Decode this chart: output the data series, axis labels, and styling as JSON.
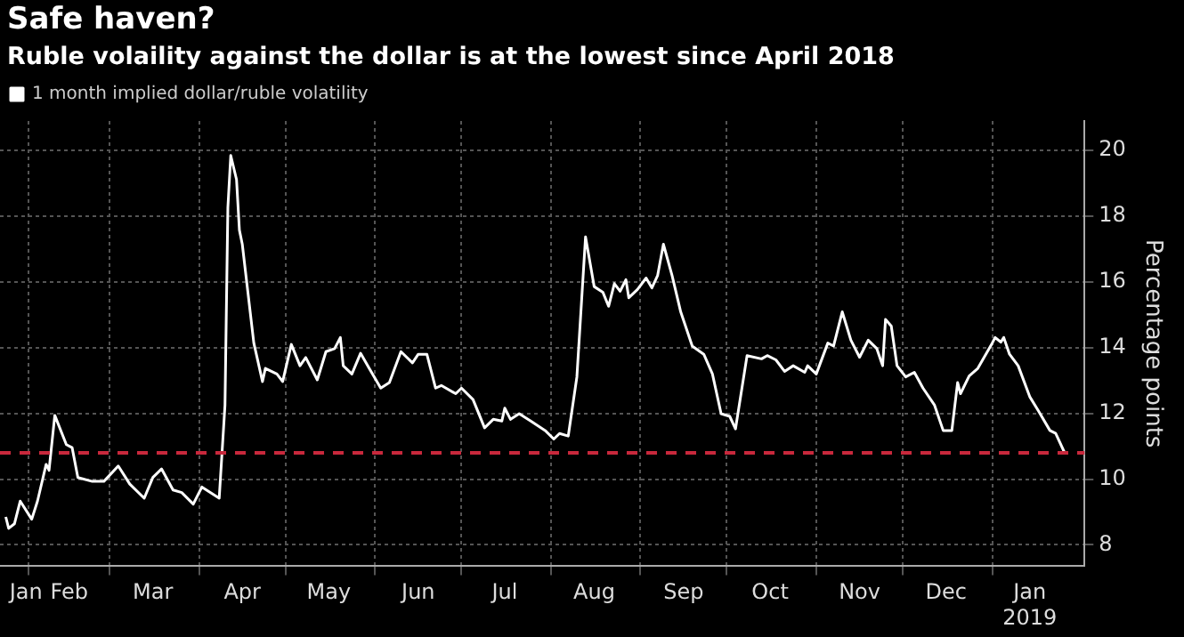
{
  "chart_data": {
    "type": "line",
    "title": "Safe haven?",
    "subtitle": "Ruble volaility against the dollar is at the lowest since April 2018",
    "ylabel": "Percentage points",
    "x": [
      "2018-01-24",
      "2018-01-25",
      "2018-01-27",
      "2018-01-29",
      "2018-02-02",
      "2018-02-04",
      "2018-02-07",
      "2018-02-08",
      "2018-02-10",
      "2018-02-14",
      "2018-02-16",
      "2018-02-18",
      "2018-02-23",
      "2018-02-27",
      "2018-03-04",
      "2018-03-08",
      "2018-03-13",
      "2018-03-16",
      "2018-03-19",
      "2018-03-23",
      "2018-03-26",
      "2018-03-30",
      "2018-04-02",
      "2018-04-08",
      "2018-04-10",
      "2018-04-11",
      "2018-04-12",
      "2018-04-14",
      "2018-04-15",
      "2018-04-16",
      "2018-04-20",
      "2018-04-23",
      "2018-04-24",
      "2018-04-28",
      "2018-04-30",
      "2018-05-03",
      "2018-05-06",
      "2018-05-08",
      "2018-05-12",
      "2018-05-15",
      "2018-05-18",
      "2018-05-20",
      "2018-05-21",
      "2018-05-24",
      "2018-05-27",
      "2018-05-30",
      "2018-06-03",
      "2018-06-06",
      "2018-06-10",
      "2018-06-14",
      "2018-06-16",
      "2018-06-19",
      "2018-06-22",
      "2018-06-24",
      "2018-06-29",
      "2018-07-01",
      "2018-07-05",
      "2018-07-09",
      "2018-07-12",
      "2018-07-15",
      "2018-07-16",
      "2018-07-18",
      "2018-07-21",
      "2018-07-25",
      "2018-07-30",
      "2018-08-02",
      "2018-08-04",
      "2018-08-07",
      "2018-08-10",
      "2018-08-13",
      "2018-08-16",
      "2018-08-19",
      "2018-08-21",
      "2018-08-23",
      "2018-08-25",
      "2018-08-27",
      "2018-08-28",
      "2018-08-31",
      "2018-09-03",
      "2018-09-05",
      "2018-09-07",
      "2018-09-09",
      "2018-09-12",
      "2018-09-15",
      "2018-09-19",
      "2018-09-23",
      "2018-09-26",
      "2018-09-29",
      "2018-10-02",
      "2018-10-04",
      "2018-10-08",
      "2018-10-13",
      "2018-10-15",
      "2018-10-18",
      "2018-10-21",
      "2018-10-24",
      "2018-10-28",
      "2018-10-29",
      "2018-11-01",
      "2018-11-05",
      "2018-11-07",
      "2018-11-10",
      "2018-11-13",
      "2018-11-16",
      "2018-11-19",
      "2018-11-22",
      "2018-11-24",
      "2018-11-25",
      "2018-11-27",
      "2018-11-29",
      "2018-12-02",
      "2018-12-05",
      "2018-12-08",
      "2018-12-12",
      "2018-12-15",
      "2018-12-18",
      "2018-12-20",
      "2018-12-21",
      "2018-12-24",
      "2018-12-27",
      "2019-01-01",
      "2019-01-02",
      "2019-01-04",
      "2019-01-05",
      "2019-01-07",
      "2019-01-10",
      "2019-01-14",
      "2019-01-17",
      "2019-01-21",
      "2019-01-23",
      "2019-01-26"
    ],
    "series": [
      {
        "name": "1 month implied dollar/ruble volatility",
        "color": "#ffffff",
        "values": [
          8.85,
          8.5,
          8.64,
          9.33,
          8.78,
          9.33,
          10.45,
          10.27,
          11.94,
          11.05,
          10.96,
          10.05,
          9.93,
          9.93,
          10.4,
          9.85,
          9.42,
          10.05,
          10.31,
          9.67,
          9.59,
          9.24,
          9.76,
          9.42,
          12.25,
          18.26,
          19.85,
          19.12,
          17.58,
          17.15,
          14.14,
          12.97,
          13.37,
          13.2,
          12.97,
          14.1,
          13.45,
          13.7,
          13.02,
          13.88,
          13.97,
          14.31,
          13.45,
          13.2,
          13.83,
          13.37,
          12.77,
          12.94,
          13.88,
          13.54,
          13.8,
          13.8,
          12.77,
          12.85,
          12.6,
          12.77,
          12.42,
          11.56,
          11.82,
          11.77,
          12.16,
          11.82,
          11.99,
          11.77,
          11.48,
          11.22,
          11.39,
          11.31,
          13.11,
          17.37,
          15.86,
          15.69,
          15.26,
          15.95,
          15.72,
          16.07,
          15.52,
          15.77,
          16.12,
          15.82,
          16.2,
          17.15,
          16.2,
          15.09,
          14.05,
          13.8,
          13.2,
          11.99,
          11.91,
          11.53,
          13.76,
          13.66,
          13.76,
          13.63,
          13.28,
          13.45,
          13.25,
          13.45,
          13.2,
          14.14,
          14.05,
          15.09,
          14.23,
          13.71,
          14.23,
          13.97,
          13.45,
          14.86,
          14.66,
          13.45,
          13.11,
          13.25,
          12.77,
          12.25,
          11.48,
          11.48,
          12.94,
          12.6,
          13.14,
          13.37,
          14.14,
          14.31,
          14.17,
          14.31,
          13.8,
          13.45,
          12.51,
          12.08,
          11.48,
          11.39,
          10.82
        ]
      }
    ],
    "xlim": [
      "2018-01-22",
      "2019-02-02"
    ],
    "xticks": [
      {
        "value": "2018-01-31",
        "label": "Jan"
      },
      {
        "value": "2018-02-01",
        "label": null
      },
      {
        "value": "2018-02-15",
        "label": "Feb"
      },
      {
        "value": "2018-03-01",
        "label": null
      },
      {
        "value": "2018-03-16",
        "label": "Mar"
      },
      {
        "value": "2018-04-01",
        "label": null
      },
      {
        "value": "2018-04-16",
        "label": "Apr"
      },
      {
        "value": "2018-05-01",
        "label": null
      },
      {
        "value": "2018-05-16",
        "label": "May"
      },
      {
        "value": "2018-06-01",
        "label": null
      },
      {
        "value": "2018-06-16",
        "label": "Jun"
      },
      {
        "value": "2018-07-01",
        "label": null
      },
      {
        "value": "2018-07-16",
        "label": "Jul"
      },
      {
        "value": "2018-08-01",
        "label": null
      },
      {
        "value": "2018-08-16",
        "label": "Aug"
      },
      {
        "value": "2018-09-01",
        "label": null
      },
      {
        "value": "2018-09-16",
        "label": "Sep"
      },
      {
        "value": "2018-10-01",
        "label": null
      },
      {
        "value": "2018-10-16",
        "label": "Oct"
      },
      {
        "value": "2018-11-01",
        "label": null
      },
      {
        "value": "2018-11-16",
        "label": "Nov"
      },
      {
        "value": "2018-12-01",
        "label": null
      },
      {
        "value": "2018-12-16",
        "label": "Dec"
      },
      {
        "value": "2019-01-01",
        "label": null
      },
      {
        "value": "2019-01-14",
        "label": "Jan 2019"
      }
    ],
    "ylim": [
      7.35,
      20.9
    ],
    "yticks": [
      8,
      10,
      12,
      14,
      16,
      18,
      20
    ],
    "ref_lines": [
      {
        "axis": "y",
        "value": 10.8,
        "color": "#c8283c",
        "line_style": "dashed"
      }
    ],
    "grid": true,
    "legend": "top left"
  }
}
